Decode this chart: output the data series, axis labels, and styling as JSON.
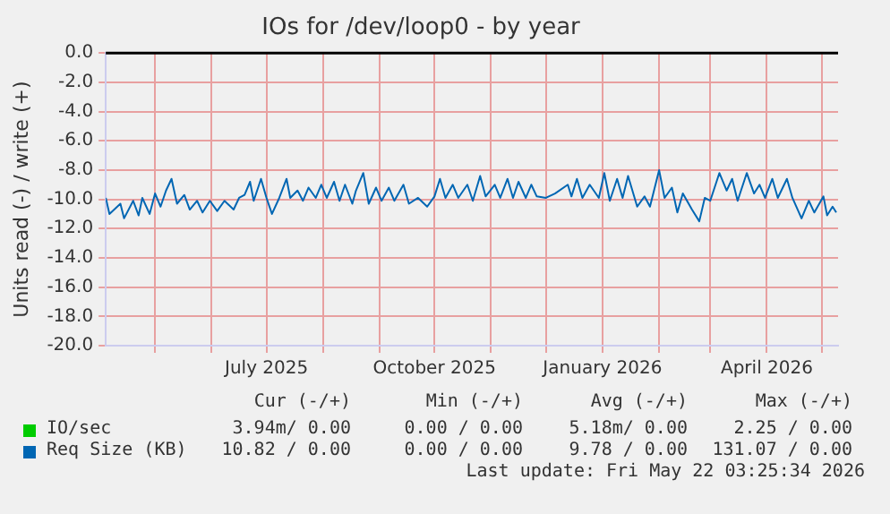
{
  "chart_data": {
    "type": "line",
    "title": "IOs for /dev/loop0 - by year",
    "ylabel": "Units read (-) / write (+)",
    "x": [
      "2025-04-04",
      "2025-04-06",
      "2025-04-12",
      "2025-04-14",
      "2025-04-19",
      "2025-04-22",
      "2025-04-24",
      "2025-04-28",
      "2025-05-01",
      "2025-05-04",
      "2025-05-07",
      "2025-05-10",
      "2025-05-13",
      "2025-05-17",
      "2025-05-20",
      "2025-05-24",
      "2025-05-27",
      "2025-05-31",
      "2025-06-04",
      "2025-06-08",
      "2025-06-13",
      "2025-06-16",
      "2025-06-19",
      "2025-06-22",
      "2025-06-24",
      "2025-06-28",
      "2025-07-01",
      "2025-07-04",
      "2025-07-08",
      "2025-07-12",
      "2025-07-14",
      "2025-07-18",
      "2025-07-21",
      "2025-07-24",
      "2025-07-28",
      "2025-07-31",
      "2025-08-03",
      "2025-08-07",
      "2025-08-10",
      "2025-08-13",
      "2025-08-17",
      "2025-08-19",
      "2025-08-23",
      "2025-08-26",
      "2025-08-30",
      "2025-09-02",
      "2025-09-06",
      "2025-09-09",
      "2025-09-14",
      "2025-09-17",
      "2025-09-22",
      "2025-09-27",
      "2025-10-01",
      "2025-10-04",
      "2025-10-07",
      "2025-10-11",
      "2025-10-14",
      "2025-10-19",
      "2025-10-22",
      "2025-10-26",
      "2025-10-29",
      "2025-11-03",
      "2025-11-06",
      "2025-11-10",
      "2025-11-13",
      "2025-11-16",
      "2025-11-20",
      "2025-11-23",
      "2025-11-26",
      "2025-12-01",
      "2025-12-06",
      "2025-12-13",
      "2025-12-15",
      "2025-12-18",
      "2025-12-21",
      "2025-12-25",
      "2025-12-30",
      "2026-01-02",
      "2026-01-05",
      "2026-01-09",
      "2026-01-12",
      "2026-01-15",
      "2026-01-20",
      "2026-01-24",
      "2026-01-27",
      "2026-02-01",
      "2026-02-04",
      "2026-02-08",
      "2026-02-11",
      "2026-02-14",
      "2026-02-19",
      "2026-02-23",
      "2026-02-26",
      "2026-03-01",
      "2026-03-06",
      "2026-03-10",
      "2026-03-13",
      "2026-03-16",
      "2026-03-21",
      "2026-03-25",
      "2026-03-28",
      "2026-03-31",
      "2026-04-04",
      "2026-04-07",
      "2026-04-12",
      "2026-04-15",
      "2026-04-20",
      "2026-04-24",
      "2026-04-27",
      "2026-05-02",
      "2026-05-04",
      "2026-05-07",
      "2026-05-09"
    ],
    "series": [
      {
        "name": "IO/sec",
        "color": "#00cc00",
        "values": [
          null,
          null,
          null,
          null,
          null,
          null,
          null,
          null,
          null,
          null,
          null,
          null,
          null,
          null,
          null,
          null,
          null,
          null,
          null,
          null,
          null,
          null,
          null,
          null,
          null,
          null,
          null,
          null,
          null,
          null,
          null,
          null,
          null,
          null,
          null,
          null,
          null,
          null,
          null,
          null,
          null,
          null,
          null,
          null,
          null,
          null,
          null,
          null,
          null,
          null,
          null,
          null,
          null,
          null,
          null,
          null,
          null,
          null,
          null,
          null,
          null,
          null,
          null,
          null,
          null,
          null,
          null,
          null,
          null,
          null,
          null,
          null,
          null,
          null,
          null,
          null,
          null,
          null,
          null,
          null,
          null,
          null,
          null,
          null,
          null,
          null,
          null,
          null,
          null,
          null,
          null,
          null,
          null,
          null,
          null,
          null,
          null,
          null,
          null,
          null,
          null,
          null,
          null,
          null,
          null,
          null,
          null,
          null,
          null,
          null,
          null,
          null,
          null
        ]
      },
      {
        "name": "Req Size (KB)",
        "color": "#0066b3",
        "values": [
          -9.9,
          -11.0,
          -10.3,
          -11.3,
          -10.1,
          -11.1,
          -9.9,
          -11.0,
          -9.6,
          -10.5,
          -9.4,
          -8.6,
          -10.3,
          -9.7,
          -10.7,
          -10.1,
          -10.9,
          -10.1,
          -10.8,
          -10.1,
          -10.7,
          -9.9,
          -9.7,
          -8.8,
          -10.1,
          -8.6,
          -9.9,
          -11.0,
          -9.9,
          -8.6,
          -9.9,
          -9.4,
          -10.1,
          -9.2,
          -9.9,
          -9.0,
          -9.9,
          -8.8,
          -10.1,
          -9.0,
          -10.3,
          -9.4,
          -8.2,
          -10.3,
          -9.2,
          -10.1,
          -9.2,
          -10.1,
          -9.0,
          -10.3,
          -9.9,
          -10.5,
          -9.8,
          -8.6,
          -9.9,
          -9.0,
          -9.9,
          -9.0,
          -10.1,
          -8.4,
          -9.8,
          -9.0,
          -9.9,
          -8.6,
          -9.9,
          -8.8,
          -9.9,
          -9.0,
          -9.8,
          -9.9,
          -9.6,
          -9.0,
          -9.8,
          -8.6,
          -9.9,
          -9.0,
          -9.9,
          -8.2,
          -10.1,
          -8.6,
          -9.9,
          -8.4,
          -10.5,
          -9.8,
          -10.5,
          -8.0,
          -9.9,
          -9.2,
          -10.9,
          -9.6,
          -10.7,
          -11.5,
          -9.9,
          -10.1,
          -8.2,
          -9.4,
          -8.6,
          -10.1,
          -8.2,
          -9.6,
          -9.0,
          -9.9,
          -8.6,
          -9.9,
          -8.6,
          -9.9,
          -11.3,
          -10.1,
          -10.9,
          -9.8,
          -11.1,
          -10.5,
          -10.9
        ]
      }
    ],
    "xlim": [
      "2025-04-04",
      "2026-05-10"
    ],
    "xticks": [
      {
        "value": "2025-05-01",
        "label": null
      },
      {
        "value": "2025-06-01",
        "label": null
      },
      {
        "value": "2025-07-01",
        "label": "July 2025"
      },
      {
        "value": "2025-08-01",
        "label": null
      },
      {
        "value": "2025-09-01",
        "label": null
      },
      {
        "value": "2025-10-01",
        "label": "October 2025"
      },
      {
        "value": "2025-11-01",
        "label": null
      },
      {
        "value": "2025-12-01",
        "label": null
      },
      {
        "value": "2026-01-01",
        "label": "January 2026"
      },
      {
        "value": "2026-02-01",
        "label": null
      },
      {
        "value": "2026-03-01",
        "label": null
      },
      {
        "value": "2026-04-01",
        "label": "April 2026"
      },
      {
        "value": "2026-05-01",
        "label": null
      }
    ],
    "ylim": [
      -20,
      0
    ],
    "yticks": [
      {
        "value": 0,
        "label": "0.0"
      },
      {
        "value": -2,
        "label": "-2.0"
      },
      {
        "value": -4,
        "label": "-4.0"
      },
      {
        "value": -6,
        "label": "-6.0"
      },
      {
        "value": -8,
        "label": "-8.0"
      },
      {
        "value": -10,
        "label": "-10.0"
      },
      {
        "value": -12,
        "label": "-12.0"
      },
      {
        "value": -14,
        "label": "-14.0"
      },
      {
        "value": -16,
        "label": "-16.0"
      },
      {
        "value": -18,
        "label": "-18.0"
      },
      {
        "value": -20,
        "label": "-20.0"
      }
    ],
    "ref_lines": [
      {
        "axis": "y",
        "value": 0,
        "color": "#000000"
      }
    ],
    "grid": true,
    "legend": "bottom",
    "marker": "none",
    "line_style": "solid",
    "annotations": [
      "Cur (-/+)",
      "Min (-/+)",
      "Avg (-/+)",
      "Max (-/+)",
      "3.94m/ 0.00",
      "0.00 / 0.00",
      "5.18m/ 0.00",
      "2.25 / 0.00",
      "10.82 / 0.00",
      "0.00 / 0.00",
      "9.78 / 0.00",
      "131.07 / 0.00",
      "Last update: Fri May 22 03:25:34 2026"
    ]
  }
}
